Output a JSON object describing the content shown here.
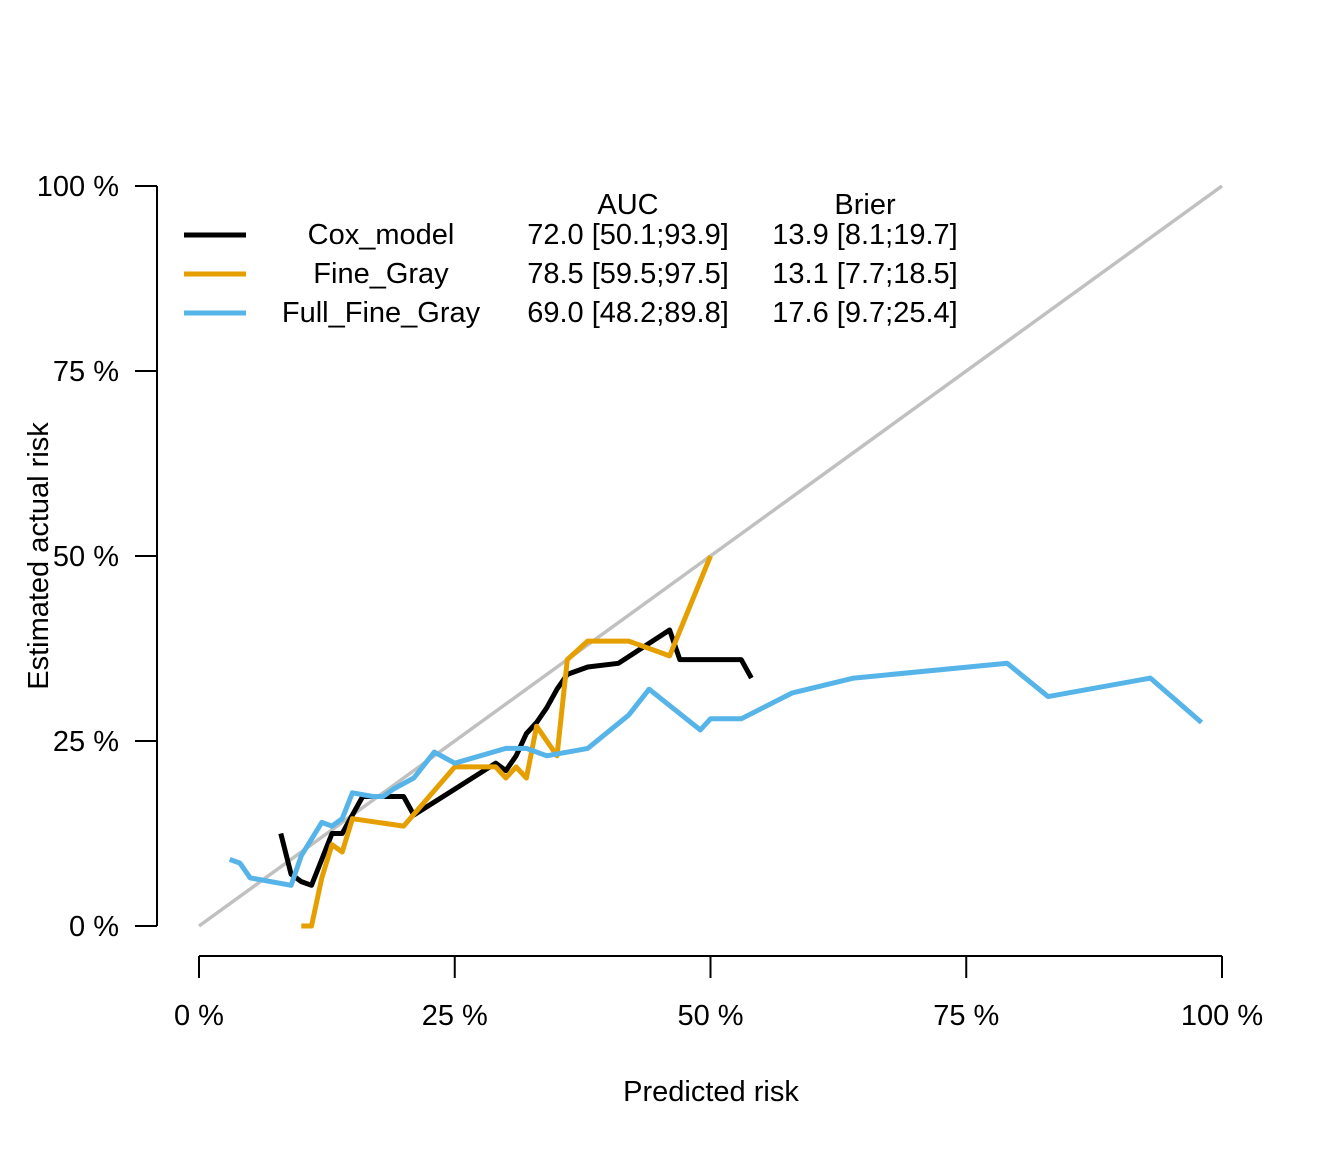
{
  "chart_data": {
    "type": "line",
    "xlabel": "Predicted risk",
    "ylabel": "Estimated actual risk",
    "xlim": [
      0,
      100
    ],
    "ylim": [
      0,
      100
    ],
    "x_ticks": [
      "0 %",
      "25 %",
      "50 %",
      "75 %",
      "100 %"
    ],
    "y_ticks": [
      "0 %",
      "25 %",
      "50 %",
      "75 %",
      "100 %"
    ],
    "grid": false,
    "reference_line": {
      "x": [
        0,
        100
      ],
      "y": [
        0,
        100
      ],
      "color": "#c0c0c0"
    },
    "legend": {
      "placement": "top-left",
      "headers": {
        "auc": "AUC",
        "brier": "Brier"
      },
      "entries": [
        {
          "name": "Cox_model",
          "auc": "72.0 [50.1;93.9]",
          "brier": "13.9 [8.1;19.7]"
        },
        {
          "name": "Fine_Gray",
          "auc": "78.5 [59.5;97.5]",
          "brier": "13.1 [7.7;18.5]"
        },
        {
          "name": "Full_Fine_Gray",
          "auc": "69.0 [48.2;89.8]",
          "brier": "17.6 [9.7;25.4]"
        }
      ]
    },
    "series": [
      {
        "name": "Cox_model",
        "color": "#000000",
        "x": [
          8,
          9,
          10,
          11,
          12,
          13,
          14,
          15,
          16,
          17,
          18,
          19,
          20,
          21,
          25,
          29,
          30,
          31,
          32,
          33,
          34,
          35,
          36,
          38,
          41,
          46,
          47,
          49,
          53,
          54
        ],
        "y": [
          12.5,
          7,
          6,
          5.5,
          9,
          12.5,
          12.5,
          15,
          17.5,
          17.5,
          17.5,
          17.5,
          17.5,
          15,
          18.5,
          22,
          21,
          23,
          26,
          27.5,
          29.5,
          32,
          34,
          35,
          35.5,
          40,
          36,
          36,
          36,
          33.5
        ]
      },
      {
        "name": "Fine_Gray",
        "color": "#e69f00",
        "x": [
          10,
          11,
          12,
          13,
          14,
          15,
          20,
          25,
          29,
          30,
          31,
          32,
          33,
          35,
          36,
          38,
          42,
          46,
          50
        ],
        "y": [
          0,
          0,
          6.5,
          11,
          10,
          14.5,
          13.5,
          21.5,
          21.5,
          20,
          21.5,
          20,
          27,
          23,
          36,
          38.5,
          38.5,
          36.5,
          50
        ]
      },
      {
        "name": "Full_Fine_Gray",
        "color": "#56b4e9",
        "x": [
          3,
          4,
          5,
          9,
          10,
          12,
          13,
          14,
          15,
          17,
          18,
          19,
          21,
          23,
          25,
          30,
          32,
          34,
          38,
          42,
          44,
          49,
          50,
          53,
          58,
          64,
          79,
          83,
          93,
          98
        ],
        "y": [
          9,
          8.5,
          6.5,
          5.5,
          9.5,
          14,
          13.5,
          14.5,
          18,
          17.5,
          17.5,
          18.5,
          20,
          23.5,
          22,
          24,
          24,
          23,
          24,
          28.5,
          32,
          26.5,
          28,
          28,
          31.5,
          33.5,
          35.5,
          31,
          33.5,
          27.5
        ]
      }
    ]
  }
}
